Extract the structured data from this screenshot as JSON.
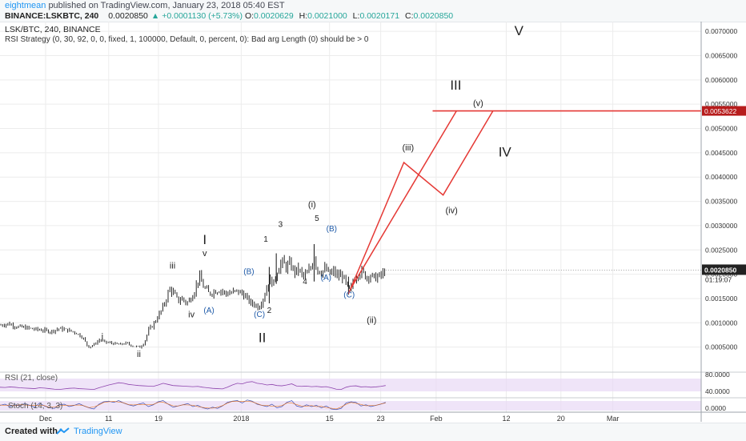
{
  "header": {
    "publisher": "eightmean",
    "published_text": "published on TradingView.com, January 23, 2018 05:40 EST",
    "symbol": "BINANCE:LSKBTC, 240",
    "last": "0.0020850",
    "change": "▲ +0.0001130 (+5.73%)",
    "open_label": "O:",
    "open": "0.0020629",
    "high_label": "H:",
    "high": "0.0021000",
    "low_label": "L:",
    "low": "0.0020171",
    "close_label": "C:",
    "close": "0.0020850"
  },
  "footer": {
    "created_with": "Created with",
    "brand": "TradingView",
    "brand_icon": "tradingview-logo-icon"
  },
  "colors": {
    "candle": "#111111",
    "red_line": "#e53935",
    "wave_label_blue": "#1e5aa8",
    "indicator_band": "#e8d9f5",
    "price_tag_dark": "#222222",
    "price_tag_red": "#b71c1c",
    "grid": "#ececec"
  },
  "chart_data": {
    "type": "candlestick",
    "title": "LSK/BTC, 240, BINANCE",
    "subtitle": "RSI Strategy (0, 30, 92, 0, 0, fixed, 1, 100000, Default, 0, percent, 0): Bad arg Length (0) should be > 0",
    "ylim": [
      0.0,
      0.0072
    ],
    "y_ticks": [
      0.0005,
      0.001,
      0.0015,
      0.002,
      0.0025,
      0.003,
      0.0035,
      0.004,
      0.0045,
      0.005,
      0.0055,
      0.006,
      0.0065,
      0.007
    ],
    "y_tick_labels": [
      "0.0005000",
      "0.0010000",
      "0.0015000",
      "0.0020000",
      "0.0025000",
      "0.0030000",
      "0.0035000",
      "0.0040000",
      "0.0045000",
      "0.0050000",
      "0.0055000",
      "0.0060000",
      "0.0065000",
      "0.0070000"
    ],
    "x_ticks": [
      {
        "label": "Dec",
        "x": 0.065
      },
      {
        "label": "11",
        "x": 0.155
      },
      {
        "label": "19",
        "x": 0.226
      },
      {
        "label": "2018",
        "x": 0.344
      },
      {
        "label": "15",
        "x": 0.47
      },
      {
        "label": "23",
        "x": 0.543
      },
      {
        "label": "Feb",
        "x": 0.622
      },
      {
        "label": "12",
        "x": 0.722
      },
      {
        "label": "20",
        "x": 0.8
      },
      {
        "label": "Mar",
        "x": 0.874
      }
    ],
    "price_path": [
      [
        0.0,
        0.00095
      ],
      [
        0.012,
        0.00098
      ],
      [
        0.024,
        0.00092
      ],
      [
        0.036,
        0.0009
      ],
      [
        0.048,
        0.00087
      ],
      [
        0.06,
        0.00085
      ],
      [
        0.072,
        0.00082
      ],
      [
        0.084,
        0.00088
      ],
      [
        0.096,
        0.00085
      ],
      [
        0.108,
        0.0008
      ],
      [
        0.118,
        0.0007
      ],
      [
        0.126,
        0.0005
      ],
      [
        0.134,
        0.00055
      ],
      [
        0.142,
        0.00065
      ],
      [
        0.15,
        0.0006
      ],
      [
        0.16,
        0.00058
      ],
      [
        0.17,
        0.00055
      ],
      [
        0.18,
        0.00058
      ],
      [
        0.19,
        0.00052
      ],
      [
        0.2,
        0.0005
      ],
      [
        0.206,
        0.0006
      ],
      [
        0.212,
        0.00085
      ],
      [
        0.218,
        0.00095
      ],
      [
        0.224,
        0.0011
      ],
      [
        0.23,
        0.00125
      ],
      [
        0.236,
        0.00145
      ],
      [
        0.242,
        0.0017
      ],
      [
        0.248,
        0.0016
      ],
      [
        0.254,
        0.00145
      ],
      [
        0.26,
        0.0015
      ],
      [
        0.266,
        0.0014
      ],
      [
        0.272,
        0.0015
      ],
      [
        0.278,
        0.00168
      ],
      [
        0.284,
        0.00195
      ],
      [
        0.29,
        0.00175
      ],
      [
        0.298,
        0.0016
      ],
      [
        0.306,
        0.00165
      ],
      [
        0.314,
        0.00168
      ],
      [
        0.322,
        0.0016
      ],
      [
        0.33,
        0.00162
      ],
      [
        0.338,
        0.00165
      ],
      [
        0.346,
        0.0016
      ],
      [
        0.352,
        0.0015
      ],
      [
        0.358,
        0.0014
      ],
      [
        0.364,
        0.00138
      ],
      [
        0.368,
        0.00132
      ],
      [
        0.372,
        0.0014
      ],
      [
        0.378,
        0.0016
      ],
      [
        0.384,
        0.0019
      ],
      [
        0.39,
        0.0018
      ],
      [
        0.396,
        0.0021
      ],
      [
        0.402,
        0.00225
      ],
      [
        0.408,
        0.00215
      ],
      [
        0.414,
        0.0022
      ],
      [
        0.42,
        0.00205
      ],
      [
        0.426,
        0.0021
      ],
      [
        0.432,
        0.00195
      ],
      [
        0.438,
        0.002
      ],
      [
        0.444,
        0.00215
      ],
      [
        0.448,
        0.0024
      ],
      [
        0.452,
        0.0021
      ],
      [
        0.458,
        0.00205
      ],
      [
        0.464,
        0.0021
      ],
      [
        0.47,
        0.002
      ],
      [
        0.476,
        0.00205
      ],
      [
        0.482,
        0.00195
      ],
      [
        0.488,
        0.00198
      ],
      [
        0.492,
        0.00185
      ],
      [
        0.496,
        0.0017
      ],
      [
        0.5,
        0.00165
      ],
      [
        0.504,
        0.0019
      ],
      [
        0.51,
        0.002
      ],
      [
        0.516,
        0.00205
      ],
      [
        0.522,
        0.00195
      ],
      [
        0.528,
        0.00198
      ],
      [
        0.534,
        0.00192
      ],
      [
        0.54,
        0.00195
      ],
      [
        0.546,
        0.002
      ],
      [
        0.55,
        0.00208
      ]
    ],
    "projection_lines": [
      {
        "name": "projection-line-1",
        "points": [
          [
            0.497,
            0.0016
          ],
          [
            0.576,
            0.0043
          ],
          [
            0.632,
            0.00363
          ],
          [
            0.703,
            0.00536
          ]
        ]
      },
      {
        "name": "projection-line-2",
        "points": [
          [
            0.5,
            0.0017
          ],
          [
            0.651,
            0.00536
          ]
        ]
      }
    ],
    "horizontal_line": {
      "y": 0.0053622,
      "x_start": 0.617,
      "label": "0.0053622"
    },
    "last_price_tag": "0.0020850",
    "countdown_tag": "01:19:07",
    "wave_labels": [
      {
        "text": "i",
        "x": 0.146,
        "y": 0.00066,
        "color": "dark",
        "size": 11
      },
      {
        "text": "ii",
        "x": 0.198,
        "y": 0.0003,
        "color": "dark",
        "size": 11
      },
      {
        "text": "iii",
        "x": 0.246,
        "y": 0.00212,
        "color": "dark",
        "size": 11
      },
      {
        "text": "iv",
        "x": 0.273,
        "y": 0.00111,
        "color": "dark",
        "size": 11
      },
      {
        "text": "v",
        "x": 0.292,
        "y": 0.00237,
        "color": "dark",
        "size": 11
      },
      {
        "text": "I",
        "x": 0.292,
        "y": 0.00262,
        "color": "dark",
        "size": 17
      },
      {
        "text": "(A)",
        "x": 0.298,
        "y": 0.0012,
        "color": "blue",
        "size": 10
      },
      {
        "text": "(B)",
        "x": 0.355,
        "y": 0.002,
        "color": "blue",
        "size": 10
      },
      {
        "text": "(C)",
        "x": 0.37,
        "y": 0.00112,
        "color": "blue",
        "size": 10
      },
      {
        "text": "1",
        "x": 0.379,
        "y": 0.00267,
        "color": "dark",
        "size": 10
      },
      {
        "text": "2",
        "x": 0.384,
        "y": 0.0012,
        "color": "dark",
        "size": 10
      },
      {
        "text": "II",
        "x": 0.374,
        "y": 0.0006,
        "color": "dark",
        "size": 17
      },
      {
        "text": "3",
        "x": 0.4,
        "y": 0.00297,
        "color": "dark",
        "size": 10
      },
      {
        "text": "4",
        "x": 0.435,
        "y": 0.0018,
        "color": "dark",
        "size": 10
      },
      {
        "text": "(i)",
        "x": 0.445,
        "y": 0.00338,
        "color": "dark",
        "size": 11
      },
      {
        "text": "5",
        "x": 0.452,
        "y": 0.0031,
        "color": "dark",
        "size": 10
      },
      {
        "text": "(B)",
        "x": 0.473,
        "y": 0.00288,
        "color": "blue",
        "size": 10
      },
      {
        "text": "(A)",
        "x": 0.465,
        "y": 0.00188,
        "color": "blue",
        "size": 10
      },
      {
        "text": "(C)",
        "x": 0.498,
        "y": 0.00152,
        "color": "blue",
        "size": 10
      },
      {
        "text": "(ii)",
        "x": 0.53,
        "y": 0.001,
        "color": "dark",
        "size": 11
      },
      {
        "text": "(iii)",
        "x": 0.582,
        "y": 0.00455,
        "color": "dark",
        "size": 11
      },
      {
        "text": "(iv)",
        "x": 0.644,
        "y": 0.00325,
        "color": "dark",
        "size": 11
      },
      {
        "text": "(v)",
        "x": 0.682,
        "y": 0.00546,
        "color": "dark",
        "size": 11
      },
      {
        "text": "III",
        "x": 0.65,
        "y": 0.0058,
        "color": "dark",
        "size": 17
      },
      {
        "text": "IV",
        "x": 0.72,
        "y": 0.00442,
        "color": "dark",
        "size": 17
      },
      {
        "text": "V",
        "x": 0.74,
        "y": 0.00692,
        "color": "dark",
        "size": 17
      }
    ],
    "rsi_panel": {
      "label": "RSI (21, close)",
      "y_tick_labels": [
        "80.0000",
        "40.0000"
      ],
      "values": [
        52,
        51,
        53,
        52,
        50,
        49,
        48,
        47,
        50,
        49,
        47,
        45,
        44,
        46,
        48,
        49,
        47,
        46,
        45,
        44,
        50,
        55,
        60,
        64,
        68,
        66,
        62,
        60,
        58,
        57,
        56,
        55,
        60,
        66,
        62,
        58,
        57,
        56,
        55,
        54,
        55,
        52,
        50,
        48,
        47,
        46,
        52,
        60,
        66,
        64,
        70,
        72,
        66,
        64,
        60,
        62,
        58,
        57,
        60,
        64,
        56,
        55,
        56,
        54,
        55,
        53,
        54,
        50,
        45,
        44,
        52,
        56,
        57,
        53,
        54,
        52,
        53,
        55,
        58
      ]
    },
    "stoch_panel": {
      "label": "Stoch (14, 3, 3)",
      "y_tick_labels": [
        "0.0000"
      ],
      "values": [
        50,
        60,
        40,
        55,
        45,
        65,
        50,
        35,
        70,
        45,
        30,
        25,
        55,
        60,
        40,
        50,
        65,
        45,
        30,
        20,
        60,
        80,
        85,
        75,
        90,
        70,
        55,
        45,
        60,
        70,
        40,
        55,
        80,
        90,
        60,
        35,
        45,
        55,
        65,
        40,
        50,
        30,
        20,
        35,
        25,
        45,
        75,
        85,
        90,
        70,
        95,
        85,
        60,
        50,
        40,
        60,
        30,
        40,
        75,
        90,
        45,
        35,
        55,
        40,
        50,
        30,
        45,
        20,
        15,
        25,
        70,
        80,
        75,
        45,
        55,
        40,
        50,
        60,
        75
      ]
    }
  }
}
